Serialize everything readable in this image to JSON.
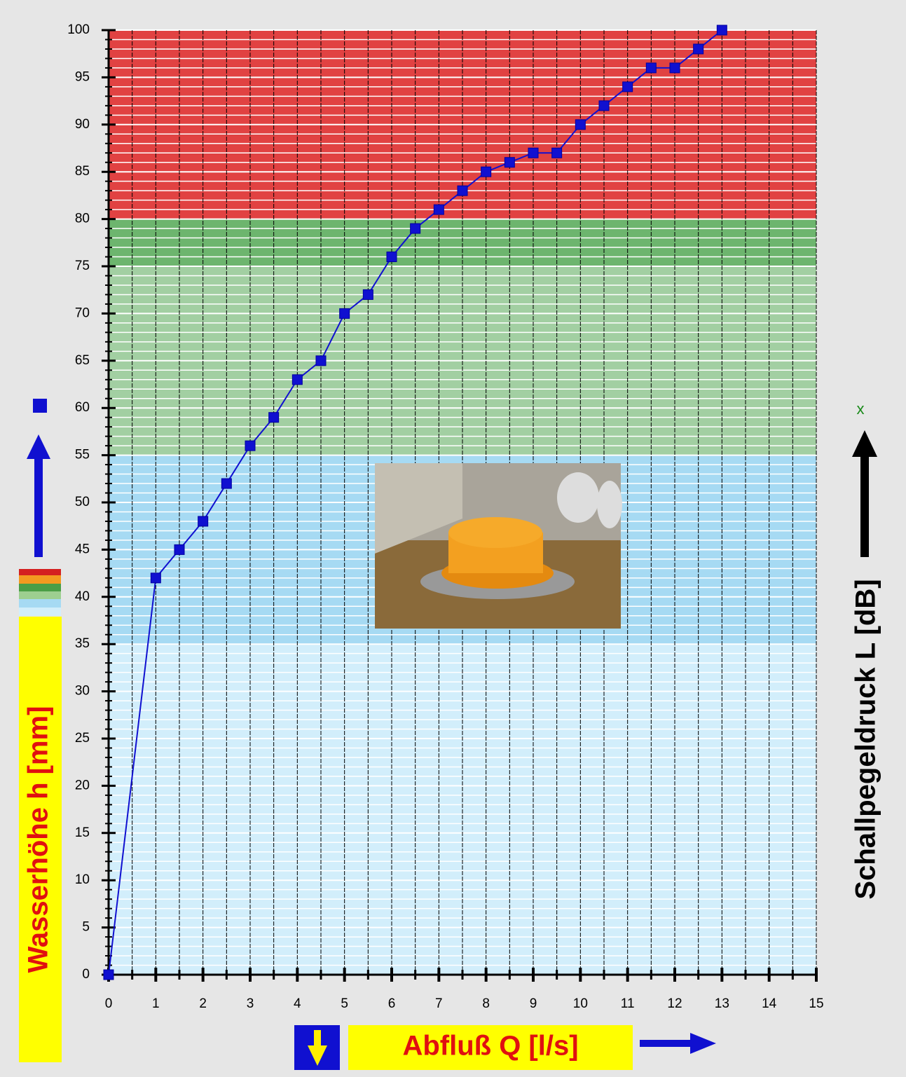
{
  "chart_data": {
    "type": "line",
    "x_label": "Abfluß Q [l/s]",
    "y_label": "Wasserhöhe h [mm]",
    "y2_label": "Schallpegeldruck L [dB]",
    "marker_note": "x",
    "x": [
      0,
      1,
      1.5,
      2,
      2.5,
      3,
      3.5,
      4,
      4.5,
      5,
      5.5,
      6,
      6.5,
      7,
      7.5,
      8,
      8.5,
      9,
      9.5,
      10,
      10.5,
      11,
      11.5,
      12,
      12.5,
      13
    ],
    "series": [
      {
        "color": "#1010d0",
        "values": [
          0,
          42,
          45,
          48,
          52,
          56,
          59,
          63,
          65,
          70,
          72,
          76,
          79,
          81,
          83,
          85,
          86,
          87,
          87,
          90,
          92,
          94,
          96,
          96,
          98,
          100
        ]
      }
    ],
    "xlim": [
      0,
      15
    ],
    "ylim": [
      0,
      100
    ],
    "xticks": [
      0,
      1,
      2,
      3,
      4,
      5,
      6,
      7,
      8,
      9,
      10,
      11,
      12,
      13,
      14,
      15
    ],
    "yticks": [
      0,
      5,
      10,
      15,
      20,
      25,
      30,
      35,
      40,
      45,
      50,
      55,
      60,
      65,
      70,
      75,
      80,
      85,
      90,
      95,
      100
    ],
    "bands": [
      {
        "from": 0,
        "to": 35,
        "color": "#d2eefb"
      },
      {
        "from": 35,
        "to": 55,
        "color": "#a6daf3"
      },
      {
        "from": 55,
        "to": 75,
        "color": "#a2cfa2"
      },
      {
        "from": 75,
        "to": 80,
        "color": "#6db56e"
      },
      {
        "from": 80,
        "to": 100,
        "color": "#e14242"
      }
    ],
    "grid": true
  }
}
